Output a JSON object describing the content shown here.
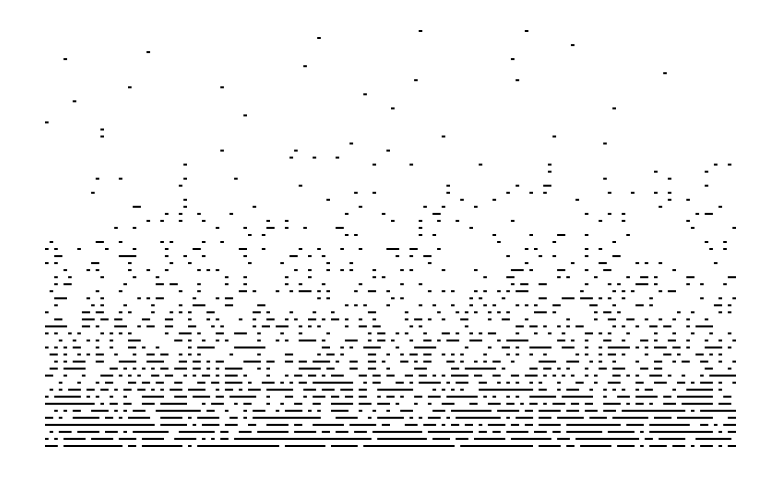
{
  "figure": {
    "background": "#ffffff",
    "mark_color": "#000000",
    "description_kind": "dense dot / dash pattern, sparse at top, dense horizontal dashed rows at bottom"
  },
  "pattern": {
    "rows": 60,
    "columns": 150,
    "seed": 7
  }
}
